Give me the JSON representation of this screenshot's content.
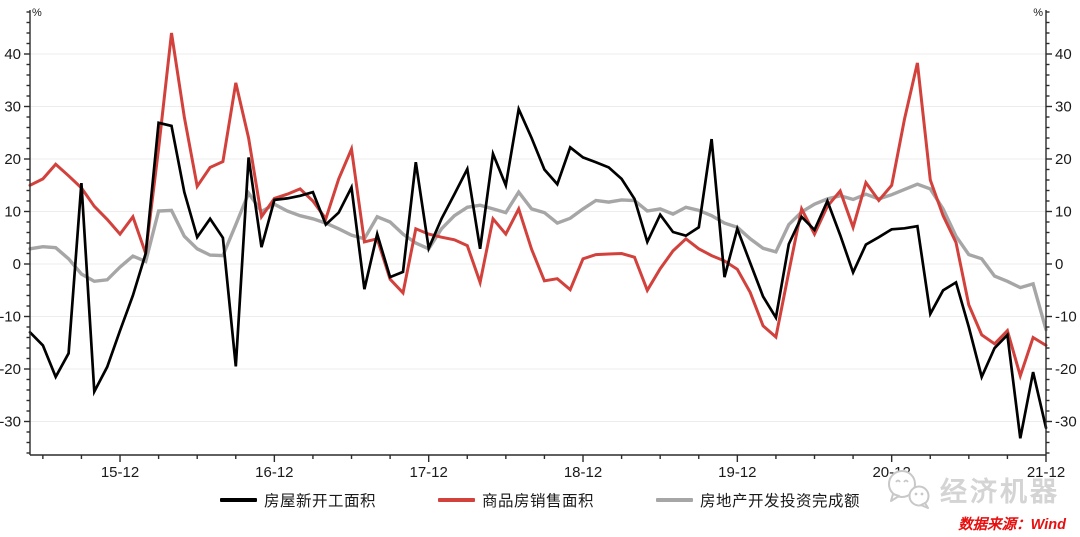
{
  "chart_data": {
    "type": "line",
    "unit_label": "%",
    "grid": true,
    "legend_position": "bottom",
    "ylim": [
      -36.5,
      48.5
    ],
    "yticks": [
      -30,
      -20,
      -10,
      0,
      10,
      20,
      30,
      40
    ],
    "xtick_labels": [
      "15-12",
      "16-12",
      "17-12",
      "18-12",
      "19-12",
      "20-12",
      "21-12"
    ],
    "x": [
      "15-05",
      "15-06",
      "15-07",
      "15-08",
      "15-09",
      "15-10",
      "15-11",
      "15-12",
      "16-01",
      "16-02",
      "16-03",
      "16-04",
      "16-05",
      "16-06",
      "16-07",
      "16-08",
      "16-09",
      "16-10",
      "16-11",
      "16-12",
      "17-01",
      "17-02",
      "17-03",
      "17-04",
      "17-05",
      "17-06",
      "17-07",
      "17-08",
      "17-09",
      "17-10",
      "17-11",
      "17-12",
      "18-01",
      "18-02",
      "18-03",
      "18-04",
      "18-05",
      "18-06",
      "18-07",
      "18-08",
      "18-09",
      "18-10",
      "18-11",
      "18-12",
      "19-01",
      "19-02",
      "19-03",
      "19-04",
      "19-05",
      "19-06",
      "19-07",
      "19-08",
      "19-09",
      "19-10",
      "19-11",
      "19-12",
      "20-01",
      "20-02",
      "20-03",
      "20-04",
      "20-05",
      "20-06",
      "20-07",
      "20-08",
      "20-09",
      "20-10",
      "20-11",
      "20-12",
      "21-01",
      "21-02",
      "21-03",
      "21-04",
      "21-05",
      "21-06",
      "21-07",
      "21-08",
      "21-09",
      "21-10",
      "21-11",
      "21-12"
    ],
    "series": [
      {
        "name": "房屋新开工面积",
        "color": "#000000",
        "values": [
          -13,
          -15.5,
          -21.5,
          -17,
          15.4,
          -24.3,
          -19.6,
          -12.7,
          -6,
          2,
          26.9,
          26.3,
          13.7,
          5.1,
          8.6,
          5,
          -19.5,
          20.3,
          3.2,
          12.2,
          12.5,
          13,
          13.7,
          7.5,
          9.8,
          14.6,
          -4.8,
          5.7,
          -2.5,
          -1.5,
          19.4,
          3,
          8.6,
          13.3,
          18.1,
          2.9,
          21,
          15,
          29.5,
          24,
          18,
          15.2,
          22.2,
          20.3,
          19.4,
          18.4,
          16.2,
          12.4,
          4.2,
          9.4,
          6.1,
          5.4,
          7,
          23.8,
          -2.5,
          6.7,
          0.2,
          -6.2,
          -10.2,
          3.8,
          9,
          6.5,
          12,
          5.5,
          -1.6,
          3.7,
          5.1,
          6.6,
          6.8,
          7.2,
          -9.5,
          -5,
          -3.5,
          -12,
          -21.5,
          -16,
          -13.5,
          -33.2,
          -20.6,
          -31.2
        ]
      },
      {
        "name": "商品房销售面积",
        "color": "#d2413c",
        "values": [
          15,
          16.2,
          19,
          16.8,
          14.5,
          11,
          8.5,
          5.7,
          9,
          2,
          22,
          44,
          28,
          14.8,
          18.4,
          19.5,
          34.5,
          24,
          9,
          12.5,
          13.3,
          14.3,
          12,
          8.6,
          16.2,
          21.9,
          4.2,
          4.8,
          -2.9,
          -5.5,
          6.7,
          5.7,
          5.1,
          4.6,
          3.5,
          -3.5,
          8.6,
          5.7,
          10.5,
          2.8,
          -3.2,
          -2.8,
          -4.9,
          1,
          1.8,
          1.9,
          2,
          1.3,
          -5,
          -0.9,
          2.5,
          4.8,
          2.9,
          1.6,
          0.6,
          -1,
          -5.4,
          -11.8,
          -13.9,
          -1.5,
          10.5,
          5.7,
          11,
          13.9,
          7,
          15.5,
          12.1,
          15,
          27.6,
          38.3,
          16,
          9.2,
          4.1,
          -7.8,
          -13.5,
          -15.2,
          -12.7,
          -21.3,
          -14,
          -15.5
        ]
      },
      {
        "name": "房地产开发投资完成额",
        "color": "#a6a6a6",
        "values": [
          2.9,
          3.3,
          3.1,
          1,
          -1.9,
          -3.3,
          -3,
          -0.6,
          1.5,
          0.5,
          10.1,
          10.2,
          5.3,
          2.9,
          1.7,
          1.6,
          7.5,
          13.5,
          10,
          11.4,
          10.1,
          9.2,
          8.6,
          7.8,
          6.7,
          5.5,
          4.8,
          9,
          8,
          5.7,
          4,
          2.9,
          6.7,
          9.2,
          10.8,
          11.2,
          10.5,
          9.8,
          13.7,
          10.5,
          9.8,
          7.8,
          8.7,
          10.5,
          12.1,
          11.8,
          12.2,
          12.1,
          10.1,
          10.5,
          9.5,
          10.8,
          10.2,
          9.2,
          7.8,
          7,
          4.8,
          3,
          2.3,
          7.5,
          9.9,
          11.4,
          12.4,
          13,
          12.3,
          13.3,
          12.4,
          13.2,
          14.2,
          15.2,
          14.3,
          10.5,
          5.3,
          1.8,
          1,
          -2.3,
          -3.3,
          -4.5,
          -3.8,
          -12.5
        ]
      }
    ]
  },
  "colors": {
    "grid": "#ededed",
    "axis": "#2b2b2b",
    "tick_label": "#1a1a1a",
    "watermark": "#d4d4d4",
    "source_note": "#e80f0f"
  },
  "watermark": {
    "brand": "经济机器",
    "icon": "wechat-icon"
  },
  "source_note": "数据来源：Wind"
}
